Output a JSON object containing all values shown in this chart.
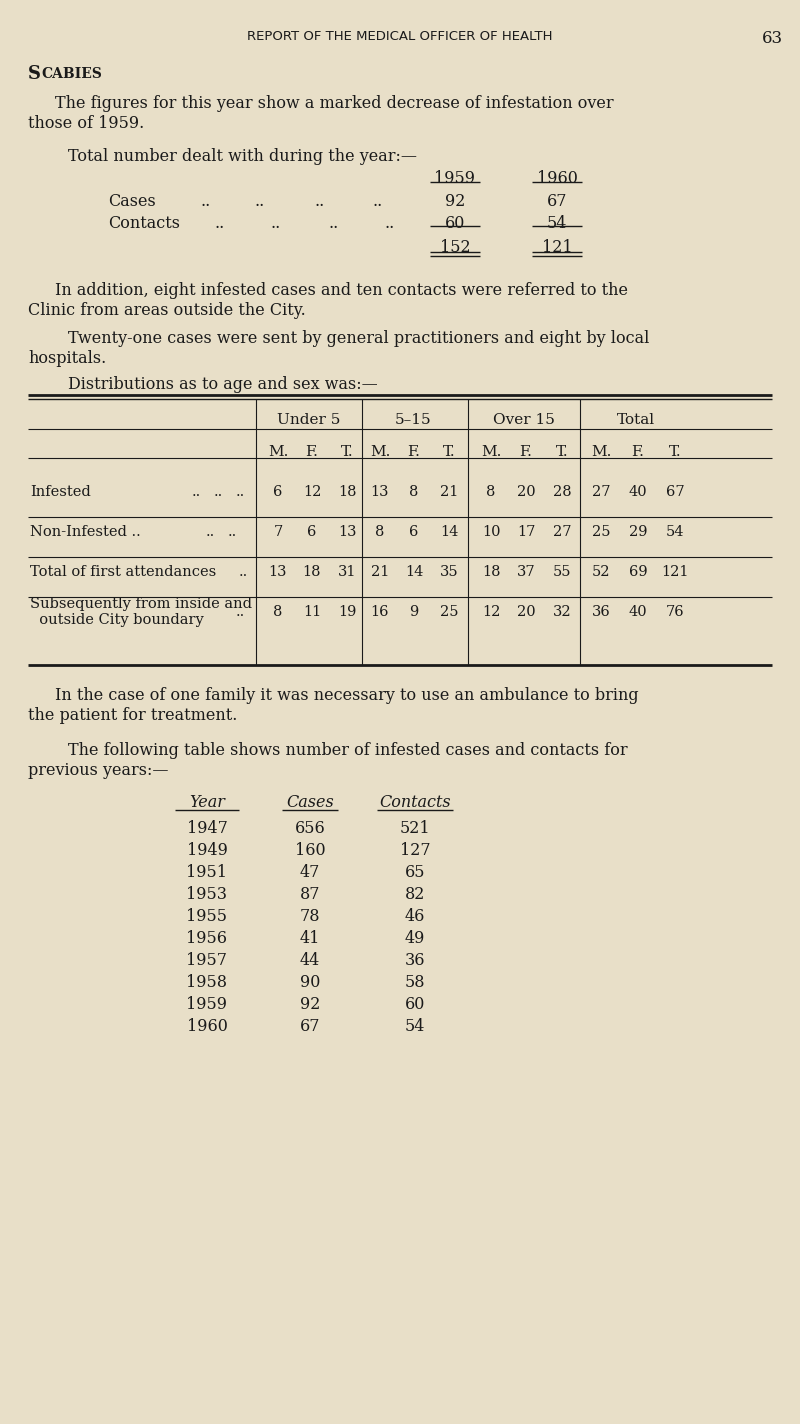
{
  "bg_color": "#e8dfc8",
  "text_color": "#1a1a1a",
  "page_header": "REPORT OF THE MEDICAL OFFICER OF HEALTH",
  "page_number": "63",
  "para1_line1": "The figures for this year show a marked decrease of infestation over",
  "para1_line2": "those of 1959.",
  "total_label": "Total number dealt with during the year:—",
  "para2_line1": "In addition, eight infested cases and ten contacts were referred to the",
  "para2_line2": "Clinic from areas outside the City.",
  "para3_line1": "Twenty-one cases were sent by general practitioners and eight by local",
  "para3_line2": "hospitals.",
  "dist_label": "Distributions as to age and sex was:—",
  "para4_line1": "In the case of one family it was necessary to use an ambulance to bring",
  "para4_line2": "the patient for treatment.",
  "para5_line1": "The following table shows number of infested cases and contacts for",
  "para5_line2": "previous years:—",
  "year_table_data": [
    [
      "1947",
      "656",
      "521"
    ],
    [
      "1949",
      "160",
      "127"
    ],
    [
      "1951",
      "47",
      "65"
    ],
    [
      "1953",
      "87",
      "82"
    ],
    [
      "1955",
      "78",
      "46"
    ],
    [
      "1956",
      "41",
      "49"
    ],
    [
      "1957",
      "44",
      "36"
    ],
    [
      "1958",
      "90",
      "58"
    ],
    [
      "1959",
      "92",
      "60"
    ],
    [
      "1960",
      "67",
      "54"
    ]
  ],
  "table_row_values": [
    [
      [
        "6",
        "12",
        "18"
      ],
      [
        "13",
        "8",
        "21"
      ],
      [
        "8",
        "20",
        "28"
      ],
      [
        "27",
        "40",
        "67"
      ]
    ],
    [
      [
        "7",
        "6",
        "13"
      ],
      [
        "8",
        "6",
        "14"
      ],
      [
        "10",
        "17",
        "27"
      ],
      [
        "25",
        "29",
        "54"
      ]
    ],
    [
      [
        "13",
        "18",
        "31"
      ],
      [
        "21",
        "14",
        "35"
      ],
      [
        "18",
        "37",
        "55"
      ],
      [
        "52",
        "69",
        "121"
      ]
    ],
    [
      [
        "8",
        "11",
        "19"
      ],
      [
        "16",
        "9",
        "25"
      ],
      [
        "12",
        "20",
        "32"
      ],
      [
        "36",
        "40",
        "76"
      ]
    ]
  ]
}
